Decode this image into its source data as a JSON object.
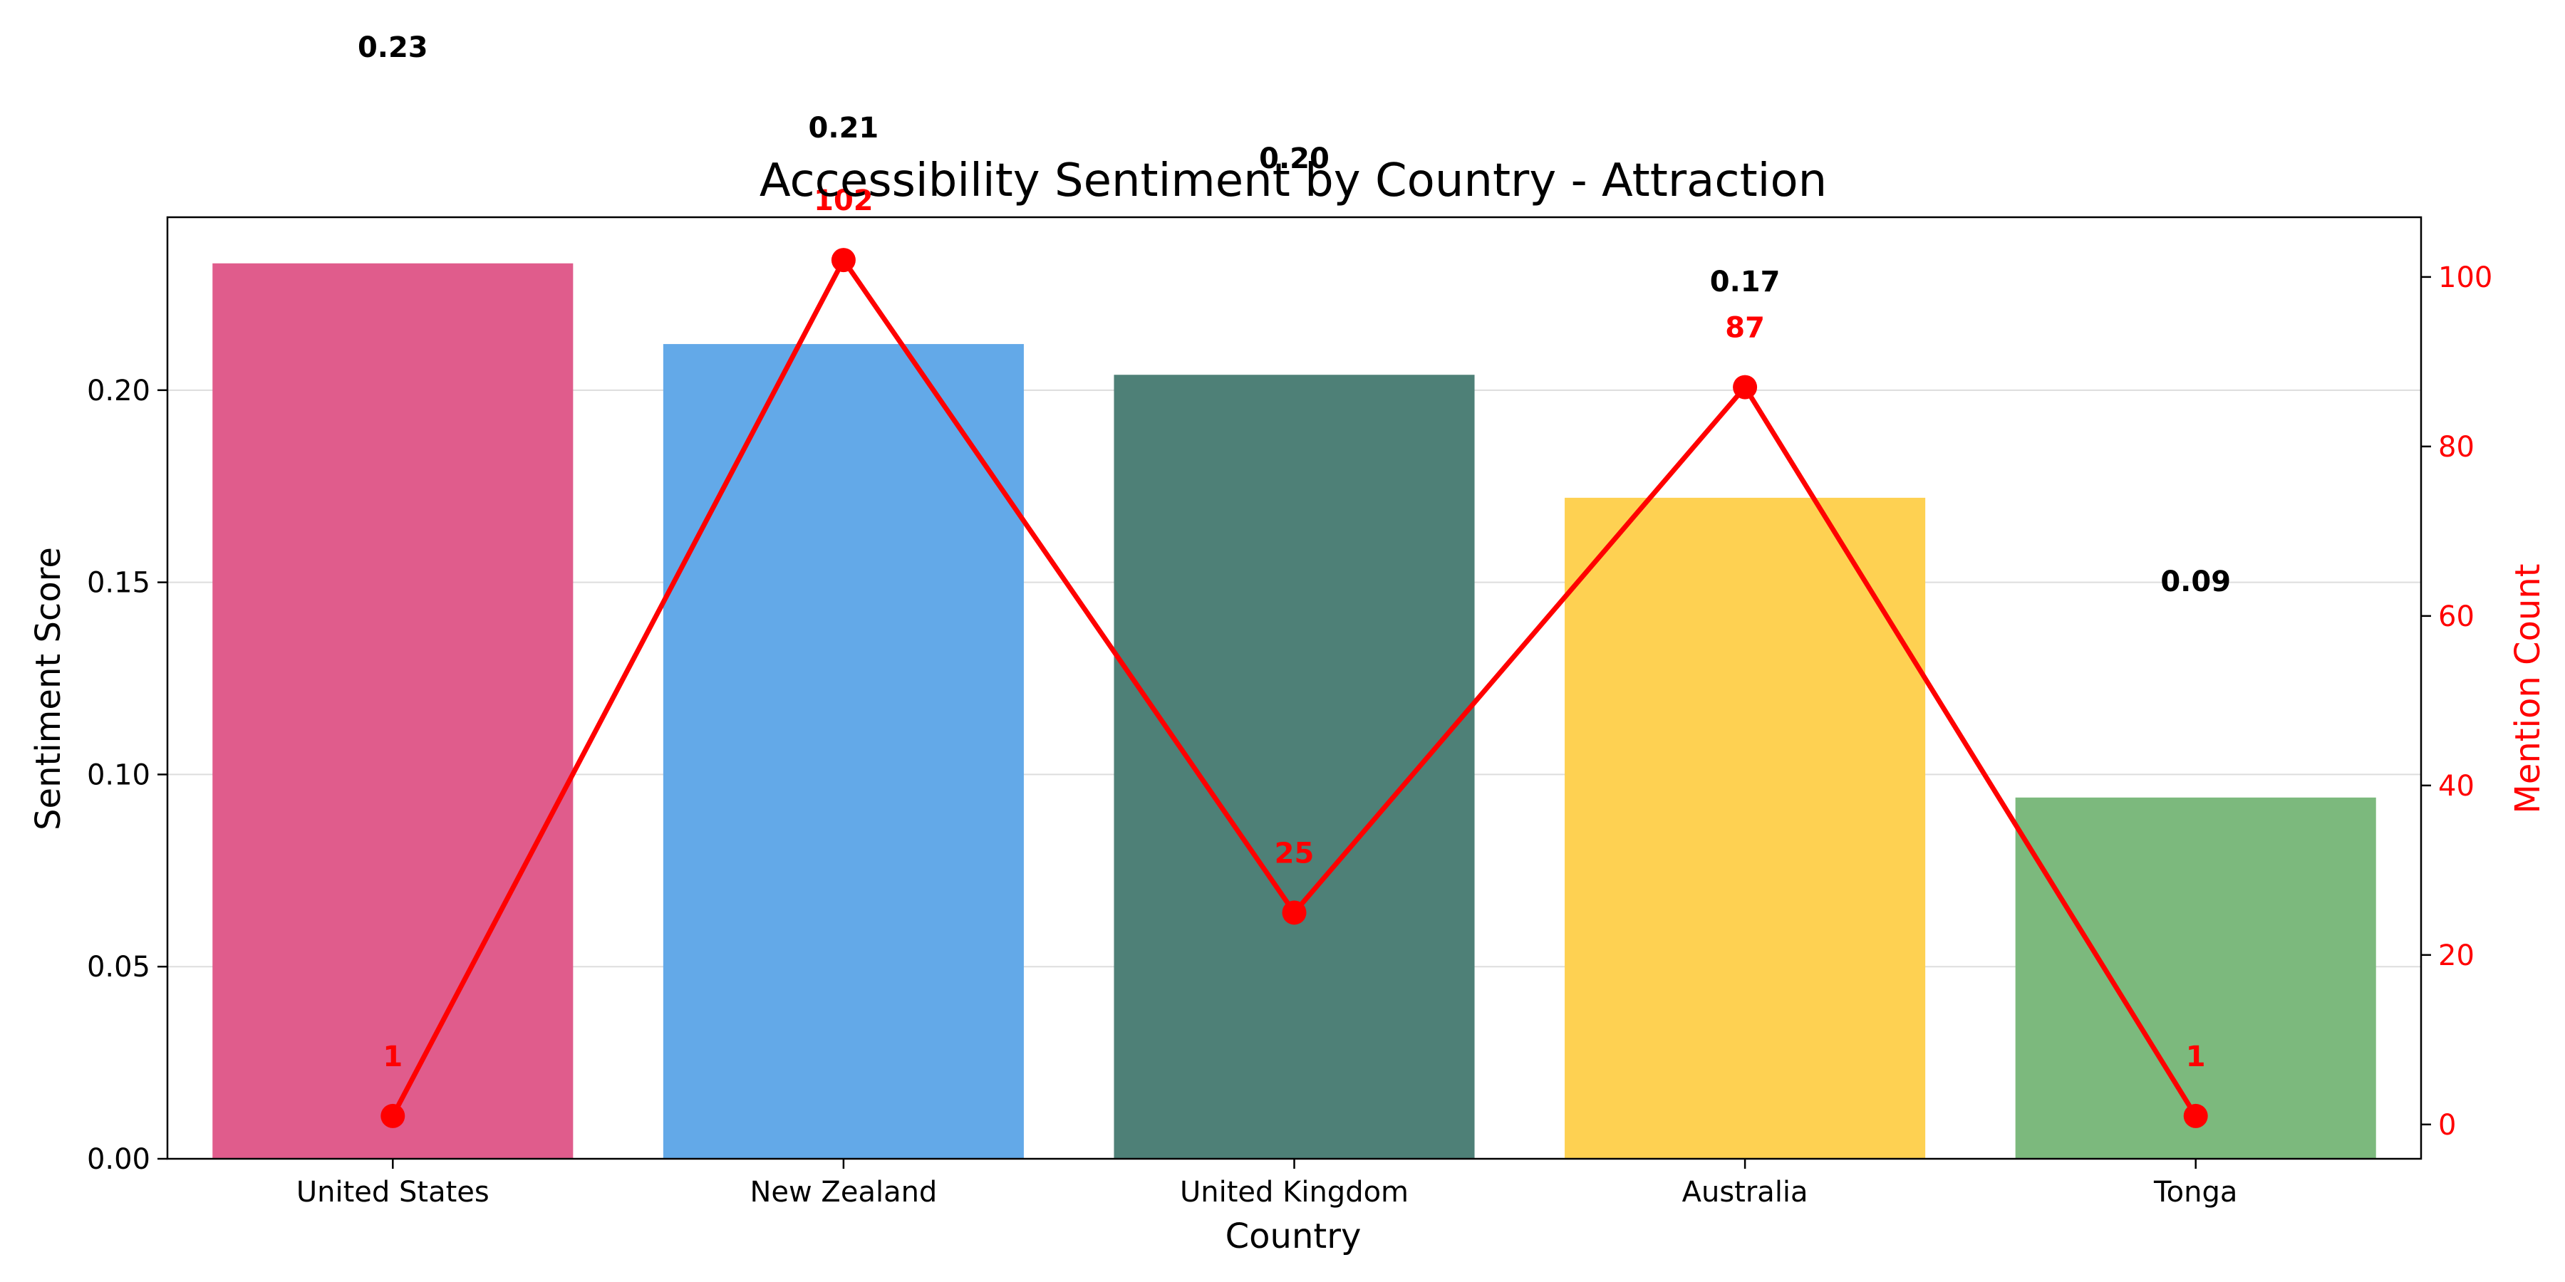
{
  "chart_data": {
    "type": "bar",
    "title": "Accessibility Sentiment by Country - Attraction",
    "xlabel": "Country",
    "ylabel": "Sentiment Score",
    "y2label": "Mention Count",
    "categories": [
      "United States",
      "New Zealand",
      "United Kingdom",
      "Australia",
      "Tonga"
    ],
    "series": [
      {
        "type": "bar",
        "axis": "left",
        "values": [
          0.233,
          0.212,
          0.204,
          0.172,
          0.094
        ],
        "labels": [
          "0.23",
          "0.21",
          "0.20",
          "0.17",
          "0.09"
        ],
        "colors": [
          "#e05c8c",
          "#63a9e8",
          "#4e8077",
          "#fed152",
          "#7cb97d"
        ]
      },
      {
        "type": "line",
        "axis": "right",
        "values": [
          1,
          102,
          25,
          87,
          1
        ],
        "labels": [
          "1",
          "102",
          "25",
          "87",
          "1"
        ],
        "color": "#ff0000"
      }
    ],
    "ylim": [
      0,
      0.245
    ],
    "y2lim": [
      -4.05,
      107.05
    ],
    "yticks": [
      "0.00",
      "0.05",
      "0.10",
      "0.15",
      "0.20"
    ],
    "y2ticks": [
      "0",
      "20",
      "40",
      "60",
      "80",
      "100"
    ],
    "grid": "horizontal"
  }
}
